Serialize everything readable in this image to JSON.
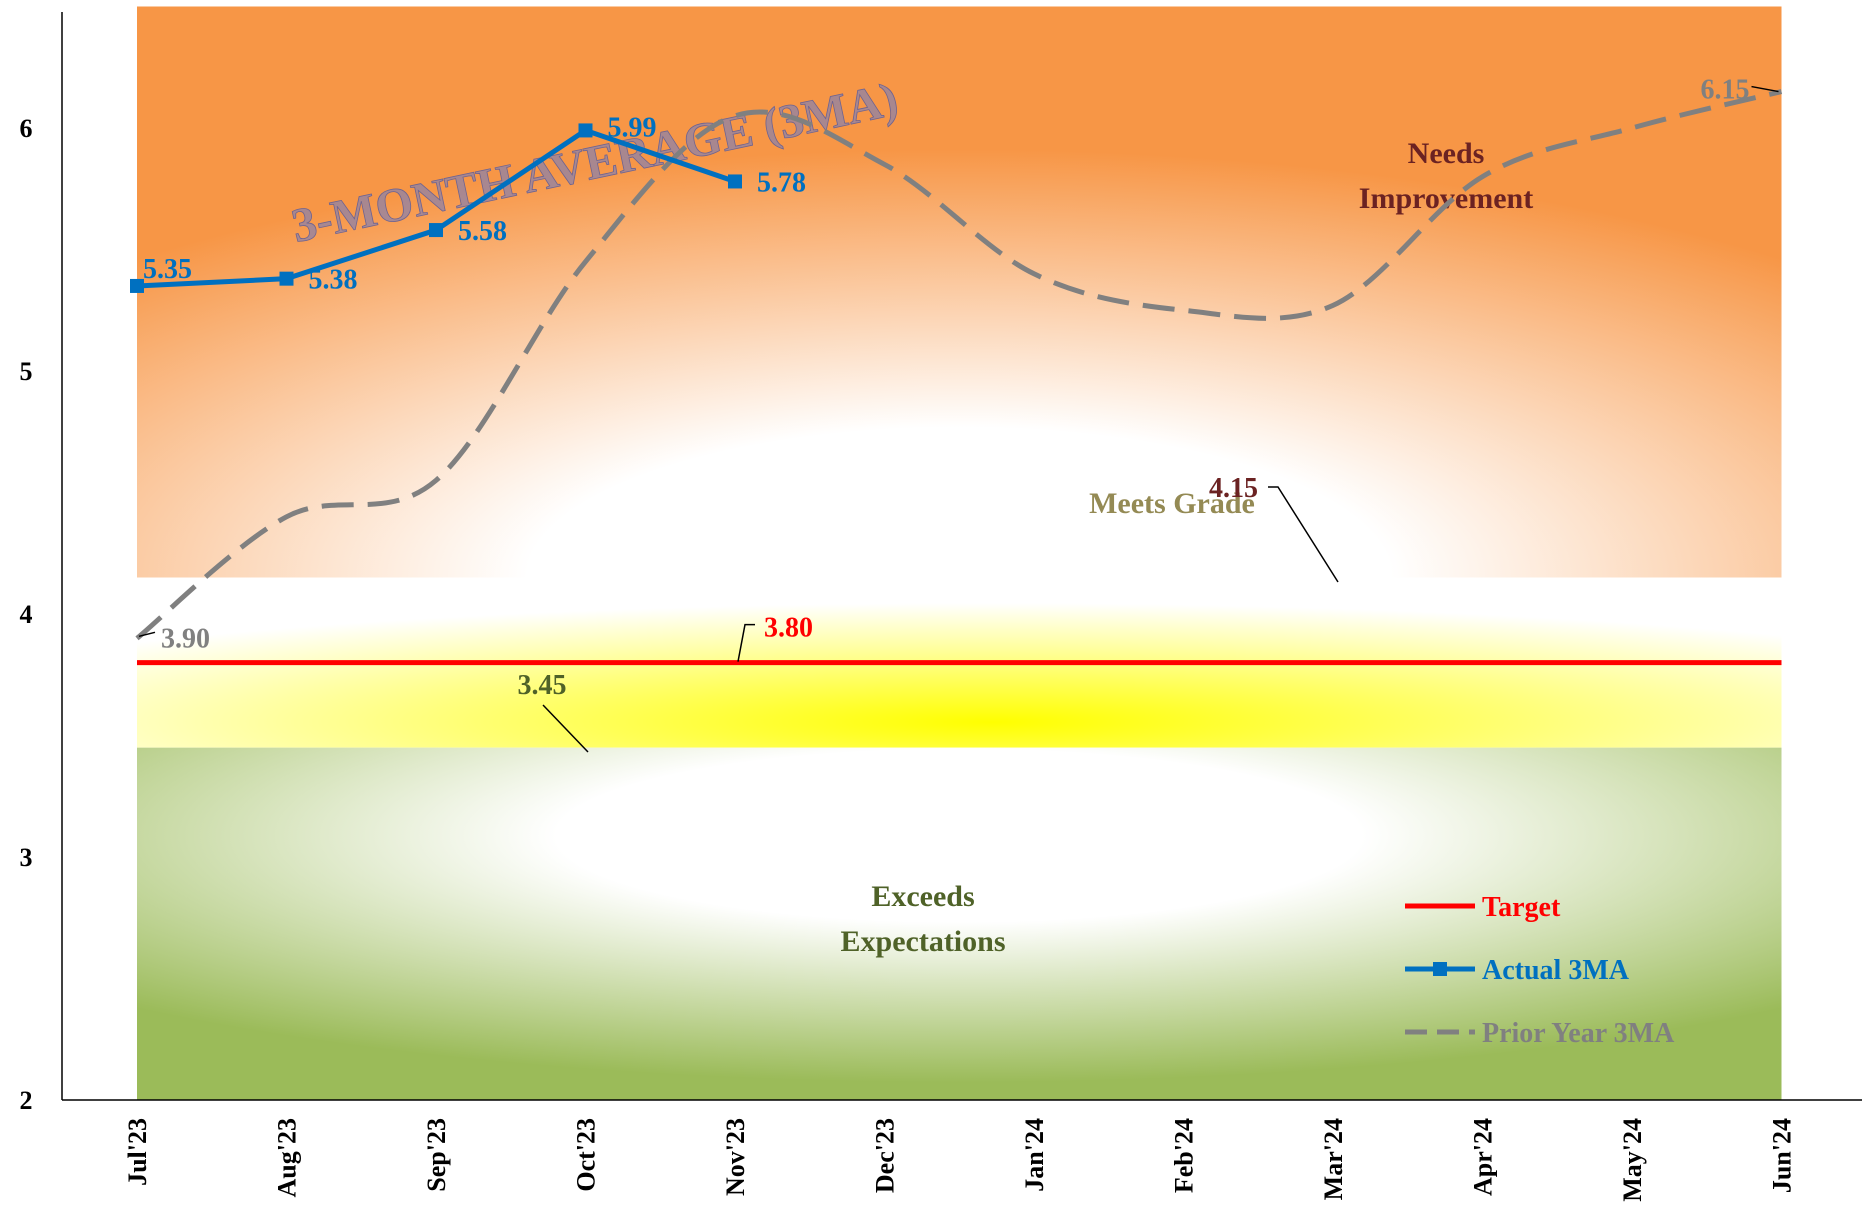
{
  "chart_data": {
    "type": "line",
    "title": "3-MONTH AVERAGE (3MA)",
    "categories": [
      "Jul'23",
      "Aug'23",
      "Sep'23",
      "Oct'23",
      "Nov'23",
      "Dec'23",
      "Jan'24",
      "Feb'24",
      "Mar'24",
      "Apr'24",
      "May'24",
      "Jun'24"
    ],
    "y_ticks": [
      "2",
      "3",
      "4",
      "5",
      "6"
    ],
    "ylim": [
      2,
      6.5
    ],
    "grid": false,
    "legend_position": "bottom-right",
    "bands": [
      {
        "label": "Needs Improvement",
        "from": 4.15,
        "to": 6.5,
        "color": "#F79646"
      },
      {
        "label": "Meets Grade",
        "from": 3.45,
        "to": 4.15,
        "color": "#FFFF00"
      },
      {
        "label": "Exceeds Expectations",
        "from": 2,
        "to": 3.45,
        "color": "#9BBB59"
      }
    ],
    "band_label_colors": {
      "needs": "#6B2222",
      "meets": "#948A54",
      "exceeds": "#4F6228"
    },
    "threshold_labels": [
      {
        "text": "4.15",
        "value": 4.15,
        "color": "#6B2222"
      },
      {
        "text": "3.45",
        "value": 3.45,
        "color": "#4F6228"
      }
    ],
    "series": [
      {
        "name": "Target",
        "color": "#FF0000",
        "style": "solid",
        "values": [
          3.8,
          3.8,
          3.8,
          3.8,
          3.8,
          3.8,
          3.8,
          3.8,
          3.8,
          3.8,
          3.8,
          3.8
        ],
        "label": "3.80"
      },
      {
        "name": "Actual 3MA",
        "color": "#0070C0",
        "style": "solid-square-markers",
        "values": [
          5.35,
          5.38,
          5.58,
          5.99,
          5.78,
          null,
          null,
          null,
          null,
          null,
          null,
          null
        ],
        "labels": [
          "5.35",
          "5.38",
          "5.58",
          "5.99",
          "5.78"
        ]
      },
      {
        "name": "Prior Year 3MA",
        "color": "#808080",
        "style": "dashed",
        "values": [
          3.9,
          4.4,
          4.55,
          5.45,
          6.05,
          5.85,
          5.4,
          5.25,
          5.27,
          5.8,
          6.0,
          6.15
        ],
        "labels": [
          "3.90",
          "6.15"
        ]
      }
    ]
  }
}
